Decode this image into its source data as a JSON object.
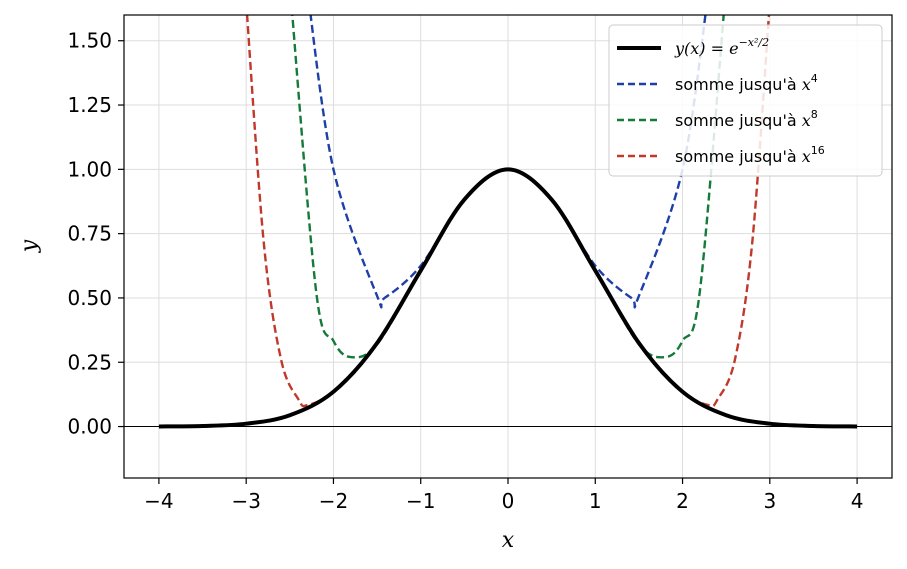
{
  "chart_data": {
    "type": "line",
    "xlabel": "x",
    "ylabel": "y",
    "xlim": [
      -4.4,
      4.4
    ],
    "ylim": [
      -0.2,
      1.6
    ],
    "x_ticks": [
      -4,
      -3,
      -2,
      -1,
      0,
      1,
      2,
      3,
      4
    ],
    "x_tick_labels": [
      "−4",
      "−3",
      "−2",
      "−1",
      "0",
      "1",
      "2",
      "3",
      "4"
    ],
    "y_ticks": [
      0.0,
      0.25,
      0.5,
      0.75,
      1.0,
      1.25,
      1.5
    ],
    "y_tick_labels": [
      "0.00",
      "0.25",
      "0.50",
      "0.75",
      "1.00",
      "1.25",
      "1.50"
    ],
    "grid": true,
    "zero_line": true,
    "legend_position": "top-right",
    "series": [
      {
        "name": "y(x) = e^{-x²/2}",
        "style": "solid",
        "color": "#000000",
        "x": [
          -4,
          -3.5,
          -3,
          -2.5,
          -2,
          -1.5,
          -1,
          -0.5,
          0,
          0.5,
          1,
          1.5,
          2,
          2.5,
          3,
          3.5,
          4
        ],
        "y": [
          0.0003,
          0.0022,
          0.0111,
          0.0439,
          0.1353,
          0.3247,
          0.6065,
          0.8825,
          1.0,
          0.8825,
          0.6065,
          0.3247,
          0.1353,
          0.0439,
          0.0111,
          0.0022,
          0.0003
        ]
      },
      {
        "name": "somme jusqu'à x^4",
        "style": "dashed",
        "color": "#1f3fa8",
        "x": [
          -2.3,
          -2,
          -1.5,
          -1.414,
          -1,
          -0.5,
          0,
          0.5,
          1,
          1.414,
          1.5,
          2,
          2.3
        ],
        "y": [
          1.7,
          1.0,
          0.5078,
          0.5,
          0.625,
          0.8828,
          1.0,
          0.8828,
          0.625,
          0.5,
          0.5078,
          1.0,
          1.7
        ]
      },
      {
        "name": "somme jusqu'à x^8",
        "style": "dashed",
        "color": "#157a3a",
        "x": [
          -2.5,
          -2.2,
          -2,
          -1.8,
          -1.5,
          -1,
          -0.5,
          0,
          0.5,
          1,
          1.5,
          1.8,
          2,
          2.2,
          2.5
        ],
        "y": [
          1.72,
          0.53,
          0.333,
          0.27,
          0.32,
          0.6068,
          0.8825,
          1.0,
          0.8825,
          0.6068,
          0.32,
          0.27,
          0.333,
          0.53,
          1.72
        ]
      },
      {
        "name": "somme jusqu'à x^16",
        "style": "dashed",
        "color": "#c0392b",
        "x": [
          -3.0,
          -2.8,
          -2.6,
          -2.4,
          -2.3,
          -2.0,
          -1.5,
          -1,
          -0.5,
          0,
          0.5,
          1,
          1.5,
          2.0,
          2.3,
          2.4,
          2.6,
          2.8,
          3.0
        ],
        "y": [
          1.65,
          0.72,
          0.26,
          0.105,
          0.083,
          0.138,
          0.3247,
          0.6065,
          0.8825,
          1.0,
          0.8825,
          0.6065,
          0.3247,
          0.138,
          0.083,
          0.105,
          0.26,
          0.72,
          1.65
        ]
      }
    ]
  },
  "legend": {
    "items": [
      {
        "prefix": "",
        "math": "y(x) = e",
        "sup": "−x²/2"
      },
      {
        "prefix": "somme jusqu'à ",
        "math": "x",
        "sup": "4"
      },
      {
        "prefix": "somme jusqu'à ",
        "math": "x",
        "sup": "8"
      },
      {
        "prefix": "somme jusqu'à ",
        "math": "x",
        "sup": "16"
      }
    ]
  }
}
